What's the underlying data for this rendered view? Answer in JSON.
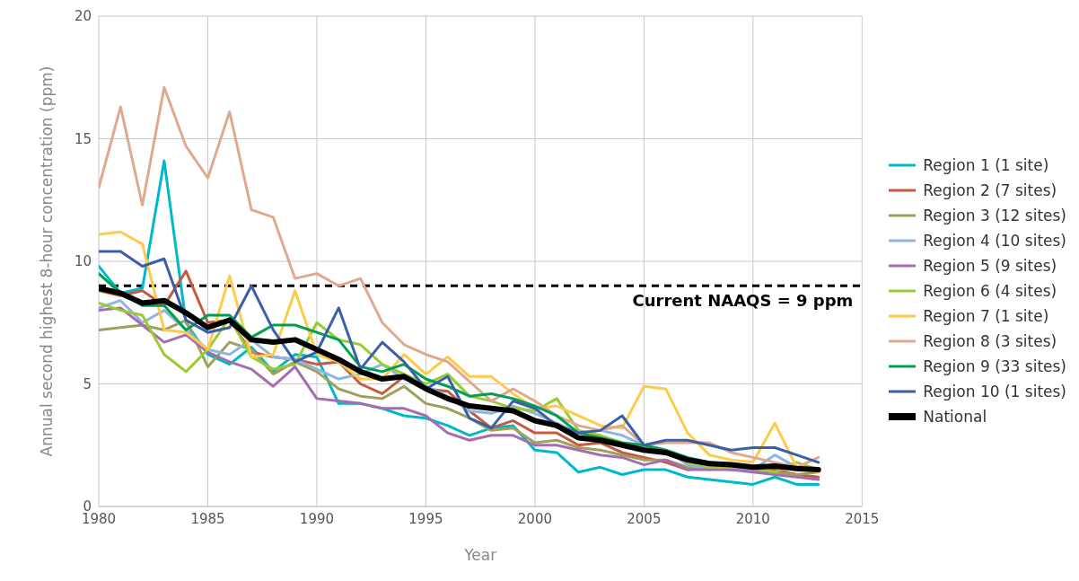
{
  "chart_data": {
    "type": "line",
    "xlabel": "Year",
    "ylabel": "Annual second highest 8-hour concentration (ppm)",
    "x": [
      1980,
      1981,
      1982,
      1983,
      1984,
      1985,
      1986,
      1987,
      1988,
      1989,
      1990,
      1991,
      1992,
      1993,
      1994,
      1995,
      1996,
      1997,
      1998,
      1999,
      2000,
      2001,
      2002,
      2003,
      2004,
      2005,
      2006,
      2007,
      2008,
      2009,
      2010,
      2011,
      2012,
      2013
    ],
    "xlim": [
      1980,
      2015
    ],
    "xticks": [
      1980,
      1985,
      1990,
      1995,
      2000,
      2005,
      2010,
      2015
    ],
    "ylim": [
      0,
      20
    ],
    "yticks": [
      0,
      5,
      10,
      15,
      20
    ],
    "grid": true,
    "legend": "right",
    "line_style": "solid",
    "marker": "none",
    "ref_lines": [
      {
        "axis": "y",
        "value": 9,
        "label": "Current NAAQS = 9 ppm",
        "color": "#000000",
        "line_style": "dashed"
      }
    ],
    "series": [
      {
        "name": "Region 1 (1 site)",
        "color": "#00b8cc",
        "values": [
          9.8,
          8.7,
          8.9,
          14.1,
          7.5,
          6.2,
          5.8,
          6.5,
          5.5,
          6.2,
          6.1,
          4.2,
          4.2,
          4.0,
          3.7,
          3.6,
          3.3,
          2.9,
          3.2,
          3.3,
          2.3,
          2.2,
          1.4,
          1.6,
          1.3,
          1.5,
          1.5,
          1.2,
          1.1,
          1.0,
          0.9,
          1.2,
          0.9,
          0.9
        ]
      },
      {
        "name": "Region 2 (7 sites)",
        "color": "#c55a40",
        "values": [
          8.8,
          8.6,
          8.8,
          8.2,
          9.6,
          7.5,
          7.6,
          6.3,
          6.1,
          6.0,
          5.8,
          5.9,
          5.0,
          4.6,
          5.3,
          4.8,
          4.7,
          3.9,
          3.2,
          3.5,
          3.0,
          3.0,
          2.5,
          2.6,
          2.2,
          2.0,
          1.8,
          1.5,
          1.6,
          1.5,
          1.6,
          1.5,
          1.3,
          1.2
        ]
      },
      {
        "name": "Region 3 (12 sites)",
        "color": "#a0a05a",
        "values": [
          7.2,
          7.3,
          7.4,
          7.2,
          7.6,
          5.7,
          6.7,
          6.4,
          5.4,
          5.9,
          5.5,
          4.8,
          4.5,
          4.4,
          4.9,
          4.2,
          4.0,
          3.6,
          3.1,
          3.2,
          2.6,
          2.7,
          2.4,
          2.3,
          2.1,
          1.9,
          1.9,
          1.6,
          1.6,
          1.5,
          1.5,
          1.4,
          1.3,
          1.4
        ]
      },
      {
        "name": "Region 4 (10 sites)",
        "color": "#8db6e0",
        "values": [
          8.1,
          8.4,
          7.5,
          8.0,
          7.2,
          6.4,
          6.2,
          6.8,
          6.1,
          6.0,
          5.6,
          5.2,
          5.4,
          5.8,
          5.2,
          4.9,
          4.5,
          3.9,
          3.8,
          4.1,
          3.8,
          3.4,
          3.0,
          3.1,
          2.9,
          2.5,
          2.3,
          1.7,
          1.5,
          1.6,
          1.5,
          2.1,
          1.6,
          1.5
        ]
      },
      {
        "name": "Region 5 (9 sites)",
        "color": "#a66cb0",
        "values": [
          8.0,
          8.1,
          7.4,
          6.7,
          7.0,
          6.3,
          5.9,
          5.6,
          4.9,
          5.7,
          4.4,
          4.3,
          4.2,
          4.0,
          4.0,
          3.7,
          3.0,
          2.7,
          2.9,
          2.9,
          2.5,
          2.5,
          2.3,
          2.1,
          2.0,
          1.7,
          1.9,
          1.5,
          1.5,
          1.5,
          1.4,
          1.3,
          1.2,
          1.1
        ]
      },
      {
        "name": "Region 6 (4 sites)",
        "color": "#9acb34",
        "values": [
          8.3,
          8.0,
          7.8,
          6.2,
          5.5,
          6.4,
          7.7,
          6.1,
          5.6,
          5.8,
          7.5,
          6.8,
          6.6,
          5.8,
          5.4,
          5.0,
          5.4,
          4.5,
          4.3,
          4.0,
          3.9,
          4.4,
          3.1,
          2.9,
          2.6,
          2.4,
          2.3,
          1.8,
          1.6,
          1.6,
          1.6,
          1.4,
          1.8,
          1.5
        ]
      },
      {
        "name": "Region 7 (1 site)",
        "color": "#ffca4a",
        "values": [
          11.1,
          11.2,
          10.7,
          7.2,
          7.1,
          6.4,
          9.4,
          6.1,
          6.2,
          8.8,
          6.2,
          5.9,
          5.2,
          5.2,
          6.2,
          5.4,
          6.1,
          5.3,
          5.3,
          4.6,
          4.0,
          4.1,
          3.7,
          3.3,
          3.2,
          4.9,
          4.8,
          3.0,
          2.1,
          1.9,
          1.8,
          3.4,
          1.6,
          1.4
        ]
      },
      {
        "name": "Region 8 (3 sites)",
        "color": "#e0a890",
        "values": [
          13.0,
          16.3,
          12.3,
          17.1,
          14.7,
          13.4,
          16.1,
          12.1,
          11.8,
          9.3,
          9.5,
          9.0,
          9.3,
          7.5,
          6.6,
          6.2,
          5.9,
          5.1,
          4.3,
          4.8,
          4.3,
          3.7,
          3.3,
          3.1,
          3.3,
          2.5,
          2.6,
          2.6,
          2.6,
          2.2,
          2.0,
          1.8,
          1.6,
          2.0
        ]
      },
      {
        "name": "Region 9 (33 sites)",
        "color": "#00a050",
        "values": [
          9.5,
          8.7,
          8.2,
          8.2,
          7.2,
          7.8,
          7.8,
          6.9,
          7.4,
          7.4,
          7.1,
          6.8,
          5.7,
          5.5,
          5.8,
          5.2,
          4.9,
          4.5,
          4.6,
          4.4,
          4.1,
          3.7,
          3.0,
          2.8,
          2.6,
          2.5,
          2.3,
          2.0,
          1.8,
          1.7,
          null,
          null,
          null,
          null
        ]
      },
      {
        "name": "Region 10 (1 sites)",
        "color": "#3a5faa",
        "values": [
          10.4,
          10.4,
          9.8,
          10.1,
          7.6,
          7.1,
          7.3,
          9.0,
          7.2,
          5.9,
          6.3,
          8.1,
          5.6,
          6.7,
          5.9,
          4.8,
          5.3,
          3.6,
          3.2,
          4.3,
          4.0,
          3.3,
          3.0,
          3.1,
          3.7,
          2.5,
          2.7,
          2.7,
          2.5,
          2.3,
          2.4,
          2.4,
          2.1,
          1.8
        ]
      },
      {
        "name": "National",
        "color": "#000000",
        "values": [
          8.9,
          8.7,
          8.3,
          8.4,
          7.9,
          7.3,
          7.6,
          6.8,
          6.7,
          6.8,
          6.4,
          6.0,
          5.5,
          5.2,
          5.3,
          4.8,
          4.4,
          4.1,
          4.0,
          3.9,
          3.5,
          3.3,
          2.8,
          2.7,
          2.5,
          2.3,
          2.2,
          1.9,
          1.75,
          1.7,
          1.6,
          1.65,
          1.55,
          1.5
        ]
      }
    ]
  }
}
